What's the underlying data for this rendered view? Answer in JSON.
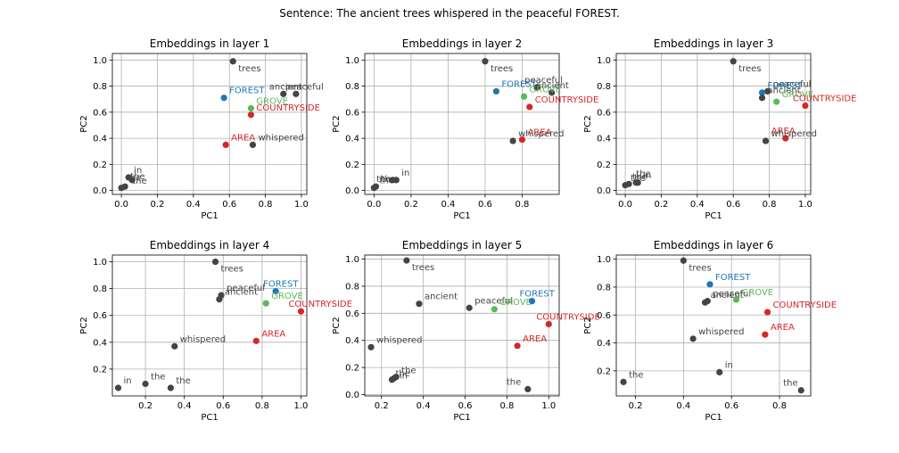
{
  "figure": {
    "suptitle": "Sentence: The ancient trees whispered in the peaceful FOREST."
  },
  "colors": {
    "default": "#444444",
    "FOREST": "#1f77b4",
    "GROVE": "#5cb85c",
    "COUNTRYSIDE": "#d62728",
    "AREA": "#d62728"
  },
  "chart_data": [
    {
      "type": "scatter",
      "title": "Embeddings in layer 1",
      "xlabel": "PC1",
      "ylabel": "PC2",
      "xlim": [
        -0.05,
        1.03
      ],
      "ylim": [
        -0.03,
        1.05
      ],
      "xticks": [
        "0.0",
        "0.2",
        "0.4",
        "0.6",
        "0.8",
        "1.0"
      ],
      "yticks": [
        "0.0",
        "0.2",
        "0.4",
        "0.6",
        "0.8",
        "1.0"
      ],
      "xtick_values": [
        0,
        0.2,
        0.4,
        0.6,
        0.8,
        1.0
      ],
      "ytick_values": [
        0,
        0.2,
        0.4,
        0.6,
        0.8,
        1.0
      ],
      "grid": true,
      "points": [
        {
          "label": "trees",
          "x": 0.62,
          "y": 0.99,
          "color": "default",
          "ldx": 6,
          "ldy": 11
        },
        {
          "label": "ancient",
          "x": 0.9,
          "y": 0.74,
          "color": "default",
          "ldx": -16,
          "ldy": -5
        },
        {
          "label": "peaceful",
          "x": 0.97,
          "y": 0.74,
          "color": "default",
          "ldx": -12,
          "ldy": -5
        },
        {
          "label": "FOREST",
          "x": 0.57,
          "y": 0.71,
          "color": "FOREST",
          "ldx": 6,
          "ldy": -5
        },
        {
          "label": "GROVE",
          "x": 0.72,
          "y": 0.63,
          "color": "GROVE",
          "ldx": 6,
          "ldy": -5
        },
        {
          "label": "COUNTRYSIDE",
          "x": 0.72,
          "y": 0.58,
          "color": "COUNTRYSIDE",
          "ldx": 6,
          "ldy": -5
        },
        {
          "label": "AREA",
          "x": 0.58,
          "y": 0.35,
          "color": "AREA",
          "ldx": 6,
          "ldy": -5
        },
        {
          "label": "whispered",
          "x": 0.73,
          "y": 0.35,
          "color": "default",
          "ldx": 6,
          "ldy": -5
        },
        {
          "label": "in",
          "x": 0.04,
          "y": 0.1,
          "color": "default",
          "ldx": 6,
          "ldy": -5
        },
        {
          "label": "the",
          "x": 0.06,
          "y": 0.08,
          "color": "default",
          "ldx": 0,
          "ldy": 4
        },
        {
          "label": "the",
          "x": 0.0,
          "y": 0.02,
          "color": "default",
          "ldx": 6,
          "ldy": -8
        },
        {
          "label": "the",
          "x": 0.02,
          "y": 0.03,
          "color": "default",
          "ldx": 6,
          "ldy": -8
        }
      ]
    },
    {
      "type": "scatter",
      "title": "Embeddings in layer 2",
      "xlabel": "PC1",
      "ylabel": "PC2",
      "xlim": [
        -0.05,
        1.0
      ],
      "ylim": [
        -0.03,
        1.05
      ],
      "xticks": [
        "0.0",
        "0.2",
        "0.4",
        "0.6",
        "0.8"
      ],
      "yticks": [
        "0.0",
        "0.2",
        "0.4",
        "0.6",
        "0.8",
        "1.0"
      ],
      "xtick_values": [
        0,
        0.2,
        0.4,
        0.6,
        0.8
      ],
      "ytick_values": [
        0,
        0.2,
        0.4,
        0.6,
        0.8,
        1.0
      ],
      "grid": true,
      "points": [
        {
          "label": "trees",
          "x": 0.6,
          "y": 0.99,
          "color": "default",
          "ldx": 6,
          "ldy": 11
        },
        {
          "label": "peaceful",
          "x": 0.88,
          "y": 0.79,
          "color": "default",
          "ldx": -14,
          "ldy": -5
        },
        {
          "label": "ancient",
          "x": 0.96,
          "y": 0.75,
          "color": "default",
          "ldx": -18,
          "ldy": -5
        },
        {
          "label": "FOREST",
          "x": 0.66,
          "y": 0.76,
          "color": "FOREST",
          "ldx": 6,
          "ldy": -5
        },
        {
          "label": "GROVE",
          "x": 0.81,
          "y": 0.72,
          "color": "GROVE",
          "ldx": 6,
          "ldy": -5
        },
        {
          "label": "COUNTRYSIDE",
          "x": 0.84,
          "y": 0.64,
          "color": "COUNTRYSIDE",
          "ldx": 6,
          "ldy": -5
        },
        {
          "label": "AREA",
          "x": 0.8,
          "y": 0.39,
          "color": "AREA",
          "ldx": 6,
          "ldy": -5
        },
        {
          "label": "whispered",
          "x": 0.75,
          "y": 0.38,
          "color": "default",
          "ldx": 6,
          "ldy": -5
        },
        {
          "label": "in",
          "x": 0.12,
          "y": 0.08,
          "color": "default",
          "ldx": 6,
          "ldy": -5
        },
        {
          "label": "the",
          "x": 0.0,
          "y": 0.02,
          "color": "default",
          "ldx": 6,
          "ldy": -5
        },
        {
          "label": "the",
          "x": 0.01,
          "y": 0.03,
          "color": "default",
          "ldx": 6,
          "ldy": -5
        },
        {
          "label": "the",
          "x": 0.1,
          "y": 0.08,
          "color": "default",
          "ldx": -18,
          "ldy": 2
        }
      ]
    },
    {
      "type": "scatter",
      "title": "Embeddings in layer 3",
      "xlabel": "PC1",
      "ylabel": "PC2",
      "xlim": [
        -0.05,
        1.03
      ],
      "ylim": [
        -0.03,
        1.05
      ],
      "xticks": [
        "0.0",
        "0.2",
        "0.4",
        "0.6",
        "0.8",
        "1.0"
      ],
      "yticks": [
        "0.0",
        "0.2",
        "0.4",
        "0.6",
        "0.8",
        "1.0"
      ],
      "xtick_values": [
        0,
        0.2,
        0.4,
        0.6,
        0.8,
        1.0
      ],
      "ytick_values": [
        0,
        0.2,
        0.4,
        0.6,
        0.8,
        1.0
      ],
      "grid": true,
      "points": [
        {
          "label": "trees",
          "x": 0.6,
          "y": 0.99,
          "color": "default",
          "ldx": 6,
          "ldy": 11
        },
        {
          "label": "peaceful",
          "x": 0.79,
          "y": 0.76,
          "color": "default",
          "ldx": 6,
          "ldy": -5
        },
        {
          "label": "FOREST",
          "x": 0.76,
          "y": 0.75,
          "color": "FOREST",
          "ldx": 6,
          "ldy": -5
        },
        {
          "label": "ancient",
          "x": 0.76,
          "y": 0.71,
          "color": "default",
          "ldx": 6,
          "ldy": -5
        },
        {
          "label": "GROVE",
          "x": 0.84,
          "y": 0.68,
          "color": "GROVE",
          "ldx": 6,
          "ldy": -5
        },
        {
          "label": "COUNTRYSIDE",
          "x": 1.0,
          "y": 0.65,
          "color": "COUNTRYSIDE",
          "ldx": -14,
          "ldy": -5
        },
        {
          "label": "AREA",
          "x": 0.89,
          "y": 0.4,
          "color": "AREA",
          "ldx": -16,
          "ldy": -5
        },
        {
          "label": "whispered",
          "x": 0.78,
          "y": 0.38,
          "color": "default",
          "ldx": 6,
          "ldy": -5
        },
        {
          "label": "in",
          "x": 0.07,
          "y": 0.06,
          "color": "default",
          "ldx": 6,
          "ldy": -5
        },
        {
          "label": "the",
          "x": 0.06,
          "y": 0.06,
          "color": "default",
          "ldx": 0,
          "ldy": -7
        },
        {
          "label": "the",
          "x": 0.02,
          "y": 0.05,
          "color": "default",
          "ldx": 4,
          "ldy": -5
        },
        {
          "label": "the",
          "x": 0.0,
          "y": 0.04,
          "color": "default",
          "ldx": 6,
          "ldy": -5
        }
      ]
    },
    {
      "type": "scatter",
      "title": "Embeddings in layer 4",
      "xlabel": "PC1",
      "ylabel": "PC2",
      "xlim": [
        0.03,
        1.03
      ],
      "ylim": [
        0.0,
        1.05
      ],
      "xticks": [
        "0.2",
        "0.4",
        "0.6",
        "0.8",
        "1.0"
      ],
      "yticks": [
        "0.2",
        "0.4",
        "0.6",
        "0.8",
        "1.0"
      ],
      "xtick_values": [
        0.2,
        0.4,
        0.6,
        0.8,
        1.0
      ],
      "ytick_values": [
        0.2,
        0.4,
        0.6,
        0.8,
        1.0
      ],
      "grid": true,
      "points": [
        {
          "label": "trees",
          "x": 0.56,
          "y": 1.0,
          "color": "default",
          "ldx": 6,
          "ldy": 11
        },
        {
          "label": "peaceful",
          "x": 0.59,
          "y": 0.75,
          "color": "default",
          "ldx": 6,
          "ldy": -5
        },
        {
          "label": "ancient",
          "x": 0.58,
          "y": 0.72,
          "color": "default",
          "ldx": 6,
          "ldy": -5
        },
        {
          "label": "FOREST",
          "x": 0.87,
          "y": 0.78,
          "color": "FOREST",
          "ldx": -14,
          "ldy": -5
        },
        {
          "label": "GROVE",
          "x": 0.82,
          "y": 0.69,
          "color": "GROVE",
          "ldx": 6,
          "ldy": -5
        },
        {
          "label": "COUNTRYSIDE",
          "x": 1.0,
          "y": 0.63,
          "color": "COUNTRYSIDE",
          "ldx": -14,
          "ldy": -5
        },
        {
          "label": "AREA",
          "x": 0.77,
          "y": 0.41,
          "color": "AREA",
          "ldx": 6,
          "ldy": -5
        },
        {
          "label": "whispered",
          "x": 0.35,
          "y": 0.37,
          "color": "default",
          "ldx": 6,
          "ldy": -5
        },
        {
          "label": "in",
          "x": 0.06,
          "y": 0.06,
          "color": "default",
          "ldx": 6,
          "ldy": -5
        },
        {
          "label": "the",
          "x": 0.2,
          "y": 0.09,
          "color": "default",
          "ldx": 6,
          "ldy": -5
        },
        {
          "label": "the",
          "x": 0.33,
          "y": 0.06,
          "color": "default",
          "ldx": 6,
          "ldy": -5
        }
      ]
    },
    {
      "type": "scatter",
      "title": "Embeddings in layer 5",
      "xlabel": "PC1",
      "ylabel": "PC2",
      "xlim": [
        0.12,
        1.05
      ],
      "ylim": [
        -0.01,
        1.03
      ],
      "xticks": [
        "0.2",
        "0.4",
        "0.6",
        "0.8",
        "1.0"
      ],
      "yticks": [
        "0.0",
        "0.2",
        "0.4",
        "0.6",
        "0.8",
        "1.0"
      ],
      "xtick_values": [
        0.2,
        0.4,
        0.6,
        0.8,
        1.0
      ],
      "ytick_values": [
        0,
        0.2,
        0.4,
        0.6,
        0.8,
        1.0
      ],
      "grid": true,
      "points": [
        {
          "label": "trees",
          "x": 0.32,
          "y": 0.99,
          "color": "default",
          "ldx": 6,
          "ldy": 11
        },
        {
          "label": "ancient",
          "x": 0.38,
          "y": 0.67,
          "color": "default",
          "ldx": 6,
          "ldy": -5
        },
        {
          "label": "peaceful",
          "x": 0.62,
          "y": 0.64,
          "color": "default",
          "ldx": 6,
          "ldy": -5
        },
        {
          "label": "GROVE",
          "x": 0.74,
          "y": 0.63,
          "color": "GROVE",
          "ldx": 6,
          "ldy": -5
        },
        {
          "label": "FOREST",
          "x": 0.92,
          "y": 0.69,
          "color": "FOREST",
          "ldx": -14,
          "ldy": -5
        },
        {
          "label": "COUNTRYSIDE",
          "x": 1.0,
          "y": 0.52,
          "color": "COUNTRYSIDE",
          "ldx": -14,
          "ldy": -5
        },
        {
          "label": "AREA",
          "x": 0.85,
          "y": 0.36,
          "color": "AREA",
          "ldx": 6,
          "ldy": -5
        },
        {
          "label": "whispered",
          "x": 0.15,
          "y": 0.35,
          "color": "default",
          "ldx": 6,
          "ldy": -5
        },
        {
          "label": "in",
          "x": 0.26,
          "y": 0.12,
          "color": "default",
          "ldx": 6,
          "ldy": 0
        },
        {
          "label": "the",
          "x": 0.27,
          "y": 0.13,
          "color": "default",
          "ldx": 6,
          "ldy": -4
        },
        {
          "label": "the",
          "x": 0.25,
          "y": 0.11,
          "color": "default",
          "ldx": 4,
          "ldy": -4
        },
        {
          "label": "the",
          "x": 0.9,
          "y": 0.04,
          "color": "default",
          "ldx": -24,
          "ldy": -5
        }
      ]
    },
    {
      "type": "scatter",
      "title": "Embeddings in layer 6",
      "xlabel": "PC1",
      "ylabel": "PC2",
      "xlim": [
        0.12,
        0.93
      ],
      "ylim": [
        0.02,
        1.03
      ],
      "xticks": [
        "0.2",
        "0.4",
        "0.6",
        "0.8"
      ],
      "yticks": [
        "0.2",
        "0.4",
        "0.6",
        "0.8",
        "1.0"
      ],
      "xtick_values": [
        0.2,
        0.4,
        0.6,
        0.8
      ],
      "ytick_values": [
        0.2,
        0.4,
        0.6,
        0.8,
        1.0
      ],
      "grid": true,
      "points": [
        {
          "label": "trees",
          "x": 0.4,
          "y": 0.99,
          "color": "default",
          "ldx": 6,
          "ldy": 11
        },
        {
          "label": "FOREST",
          "x": 0.51,
          "y": 0.82,
          "color": "FOREST",
          "ldx": 6,
          "ldy": -5
        },
        {
          "label": "ancient",
          "x": 0.49,
          "y": 0.69,
          "color": "default",
          "ldx": 6,
          "ldy": -5
        },
        {
          "label": "peaceful",
          "x": 0.5,
          "y": 0.7,
          "color": "default",
          "ldx": 6,
          "ldy": -5
        },
        {
          "label": "GROVE",
          "x": 0.62,
          "y": 0.71,
          "color": "GROVE",
          "ldx": 6,
          "ldy": -5
        },
        {
          "label": "COUNTRYSIDE",
          "x": 0.75,
          "y": 0.62,
          "color": "COUNTRYSIDE",
          "ldx": 6,
          "ldy": -5
        },
        {
          "label": "AREA",
          "x": 0.74,
          "y": 0.46,
          "color": "AREA",
          "ldx": 6,
          "ldy": -5
        },
        {
          "label": "whispered",
          "x": 0.44,
          "y": 0.43,
          "color": "default",
          "ldx": 6,
          "ldy": -5
        },
        {
          "label": "in",
          "x": 0.55,
          "y": 0.19,
          "color": "default",
          "ldx": 6,
          "ldy": -5
        },
        {
          "label": "the",
          "x": 0.15,
          "y": 0.12,
          "color": "default",
          "ldx": 6,
          "ldy": -5
        },
        {
          "label": "the",
          "x": 0.89,
          "y": 0.06,
          "color": "default",
          "ldx": -20,
          "ldy": -5
        }
      ]
    }
  ]
}
